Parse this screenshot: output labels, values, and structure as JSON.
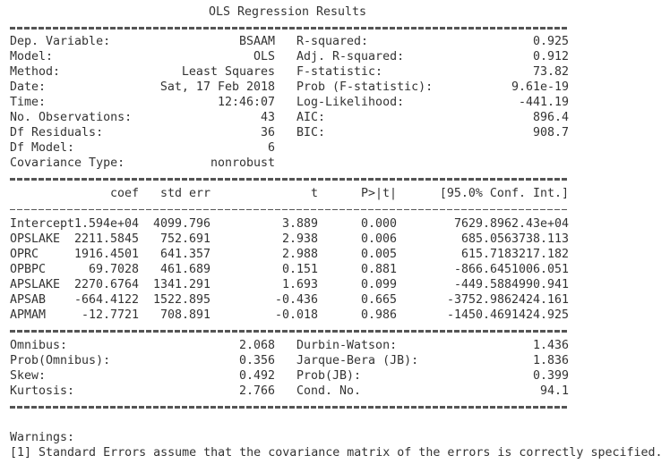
{
  "title": "OLS Regression Results",
  "summary": {
    "rows": [
      [
        "Dep. Variable:",
        "BSAAM",
        "R-squared:",
        "0.925"
      ],
      [
        "Model:",
        "OLS",
        "Adj. R-squared:",
        "0.912"
      ],
      [
        "Method:",
        "Least Squares",
        "F-statistic:",
        "73.82"
      ],
      [
        "Date:",
        "Sat, 17 Feb 2018",
        "Prob (F-statistic):",
        "9.61e-19"
      ],
      [
        "Time:",
        "12:46:07",
        "Log-Likelihood:",
        "-441.19"
      ],
      [
        "No. Observations:",
        "43",
        "AIC:",
        "896.4"
      ],
      [
        "Df Residuals:",
        "36",
        "BIC:",
        "908.7"
      ],
      [
        "Df Model:",
        "6"
      ],
      [
        "Covariance Type:",
        "nonrobust"
      ]
    ]
  },
  "coef_table": {
    "header": [
      "coef",
      "std err",
      "t",
      "P>|t|",
      "[95.0% Conf. Int.]"
    ],
    "rows": [
      [
        "Intercept",
        "1.594e+04",
        "4099.796",
        "3.889",
        "0.000",
        "7629.896",
        "2.43e+04"
      ],
      [
        "OPSLAKE",
        "2211.5845",
        "752.691",
        "2.938",
        "0.006",
        "685.056",
        "3738.113"
      ],
      [
        "OPRC",
        "1916.4501",
        "641.357",
        "2.988",
        "0.005",
        "615.718",
        "3217.182"
      ],
      [
        "OPBPC",
        "69.7028",
        "461.689",
        "0.151",
        "0.881",
        "-866.645",
        "1006.051"
      ],
      [
        "APSLAKE",
        "2270.6764",
        "1341.291",
        "1.693",
        "0.099",
        "-449.588",
        "4990.941"
      ],
      [
        "APSAB",
        "-664.4122",
        "1522.895",
        "-0.436",
        "0.665",
        "-3752.986",
        "2424.161"
      ],
      [
        "APMAM",
        "-12.7721",
        "708.891",
        "-0.018",
        "0.986",
        "-1450.469",
        "1424.925"
      ]
    ]
  },
  "diagnostics": {
    "rows": [
      [
        "Omnibus:",
        "2.068",
        "Durbin-Watson:",
        "1.436"
      ],
      [
        "Prob(Omnibus):",
        "0.356",
        "Jarque-Bera (JB):",
        "1.836"
      ],
      [
        "Skew:",
        "0.492",
        "Prob(JB):",
        "0.399"
      ],
      [
        "Kurtosis:",
        "2.766",
        "Cond. No.",
        "94.1"
      ]
    ]
  },
  "warnings": {
    "title": "Warnings:",
    "notes": [
      "[1] Standard Errors assume that the covariance matrix of the errors is correctly specified."
    ]
  }
}
